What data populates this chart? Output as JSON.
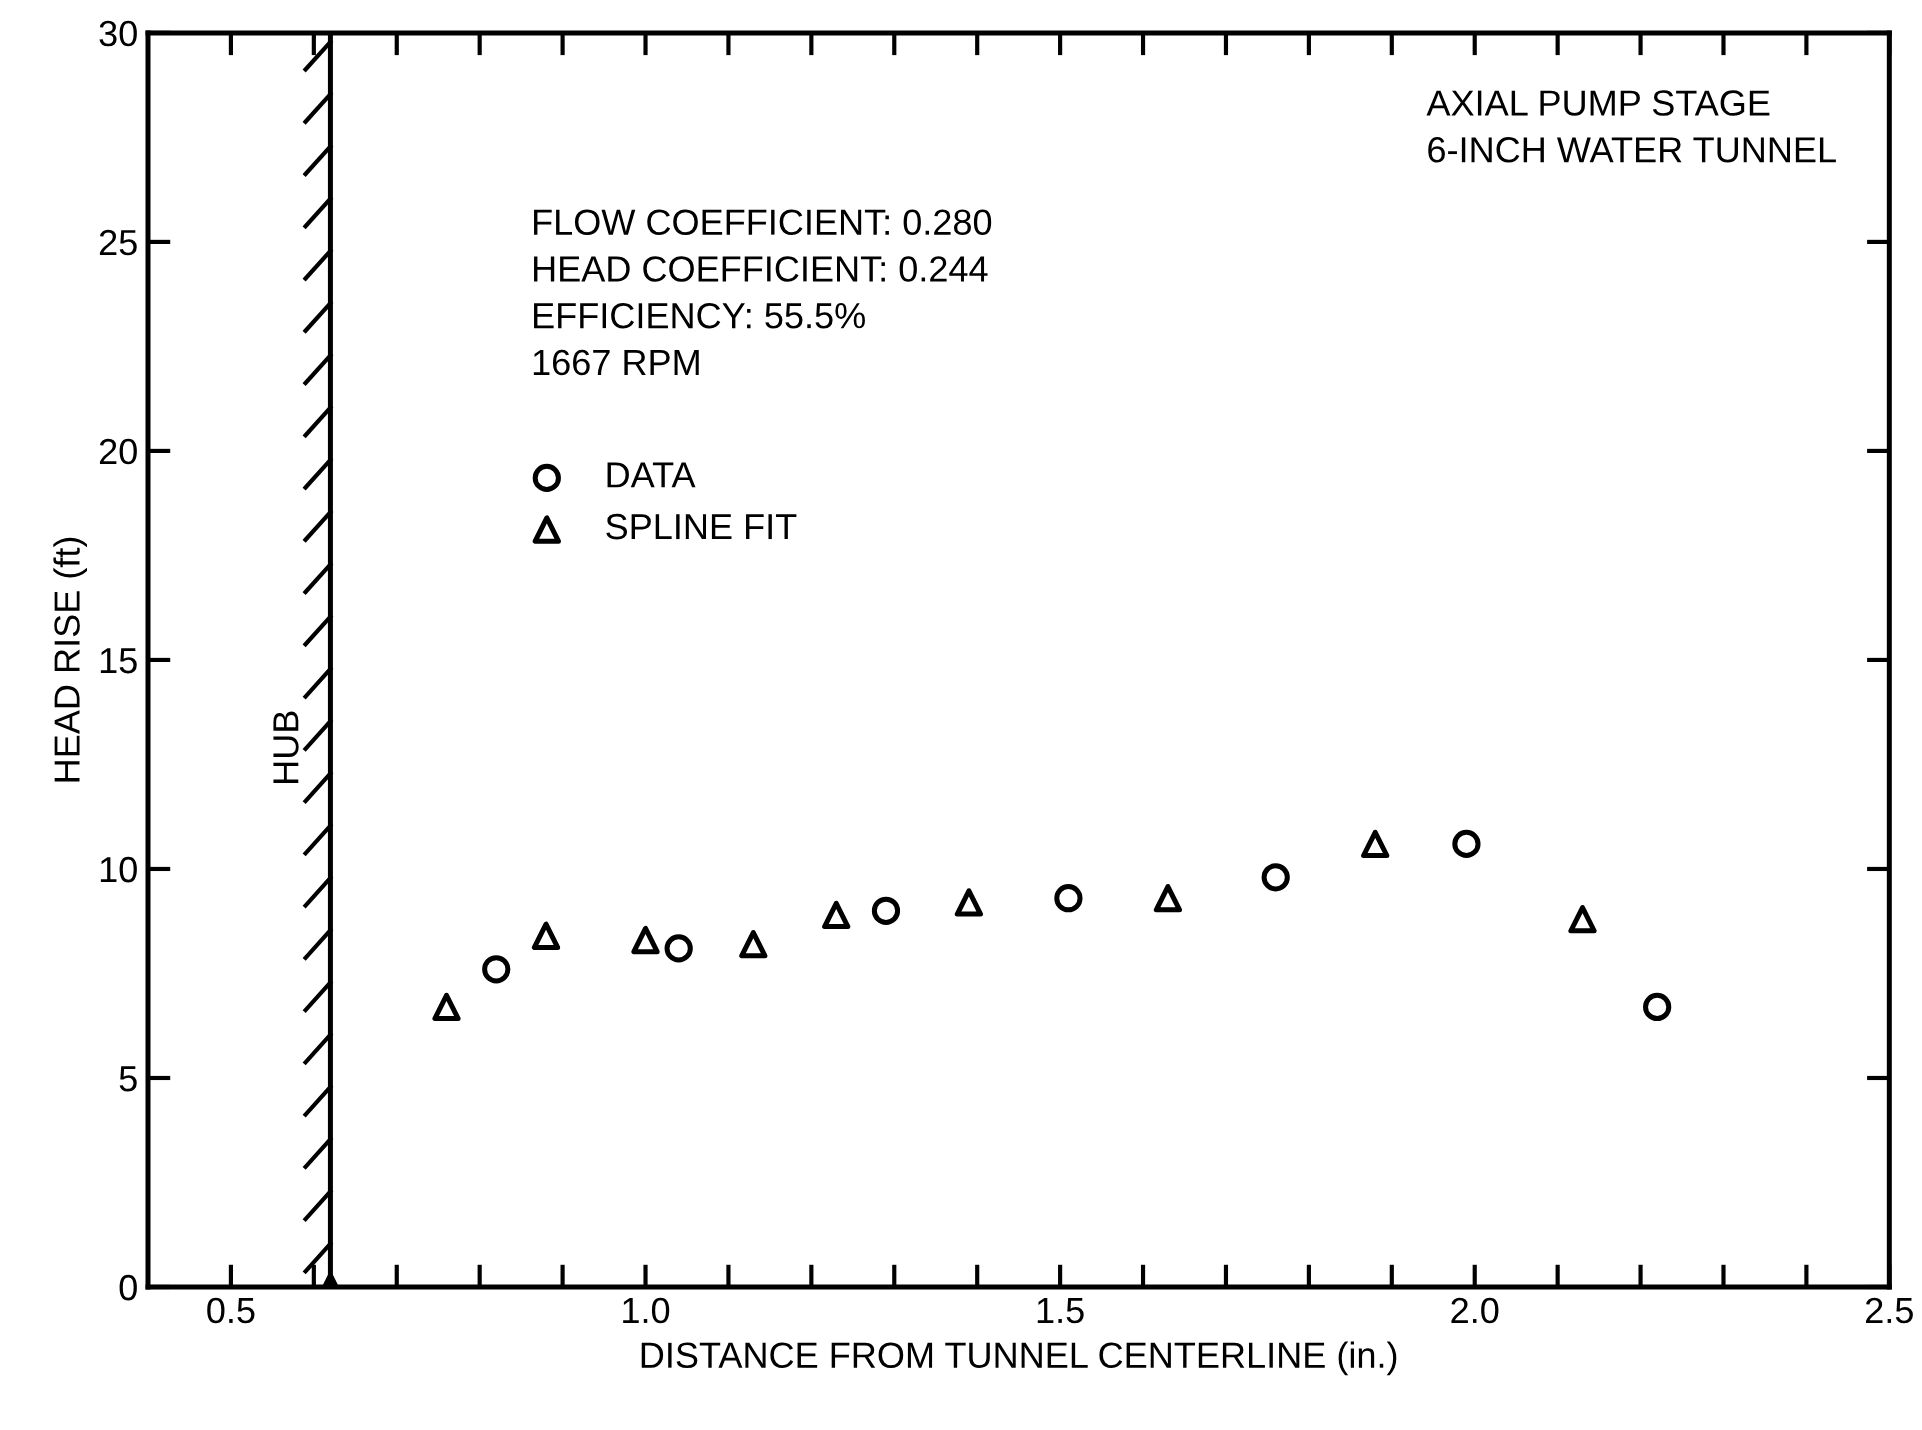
{
  "chart_data": {
    "type": "scatter",
    "xlabel": "DISTANCE FROM TUNNEL CENTERLINE (in.)",
    "ylabel": "HEAD RISE (ft)",
    "xlim": [
      0.4,
      2.5
    ],
    "ylim": [
      0,
      30
    ],
    "xticks": [
      {
        "value": 0.5,
        "label": "0.5"
      },
      {
        "value": 0.6,
        "label": null
      },
      {
        "value": 0.7,
        "label": null
      },
      {
        "value": 0.8,
        "label": null
      },
      {
        "value": 0.9,
        "label": null
      },
      {
        "value": 1.0,
        "label": "1.0"
      },
      {
        "value": 1.1,
        "label": null
      },
      {
        "value": 1.2,
        "label": null
      },
      {
        "value": 1.3,
        "label": null
      },
      {
        "value": 1.4,
        "label": null
      },
      {
        "value": 1.5,
        "label": "1.5"
      },
      {
        "value": 1.6,
        "label": null
      },
      {
        "value": 1.7,
        "label": null
      },
      {
        "value": 1.8,
        "label": null
      },
      {
        "value": 1.9,
        "label": null
      },
      {
        "value": 2.0,
        "label": "2.0"
      },
      {
        "value": 2.1,
        "label": null
      },
      {
        "value": 2.2,
        "label": null
      },
      {
        "value": 2.3,
        "label": null
      },
      {
        "value": 2.4,
        "label": null
      },
      {
        "value": 2.5,
        "label": "2.5"
      }
    ],
    "yticks": [
      0,
      5,
      10,
      15,
      20,
      25,
      30
    ],
    "grid": false,
    "legend": "top left",
    "series": [
      {
        "name": "DATA",
        "color": "#000000",
        "marker": "circle",
        "x": [
          0.82,
          1.04,
          1.29,
          1.51,
          1.76,
          1.99,
          2.22
        ],
        "values": [
          7.6,
          8.1,
          9.0,
          9.3,
          9.8,
          10.6,
          6.7
        ]
      },
      {
        "name": "SPLINE FIT",
        "color": "#000000",
        "marker": "triangle",
        "x": [
          0.62,
          0.76,
          0.88,
          1.0,
          1.13,
          1.23,
          1.39,
          1.63,
          1.88,
          2.13
        ],
        "values": [
          0,
          6.7,
          8.4,
          8.3,
          8.2,
          8.9,
          9.2,
          9.3,
          10.6,
          8.8
        ]
      }
    ],
    "ref_lines": [
      {
        "axis": "x",
        "value": 0.62,
        "label": "HUB",
        "color": "#000000",
        "line_style": "solid"
      }
    ],
    "annotations": [
      "AXIAL PUMP STAGE\n6-INCH WATER TUNNEL",
      "FLOW COEFFICIENT: 0.280\nHEAD COEFFICIENT: 0.244\nEFFICIENCY: 55.5%\n1667 RPM"
    ]
  }
}
